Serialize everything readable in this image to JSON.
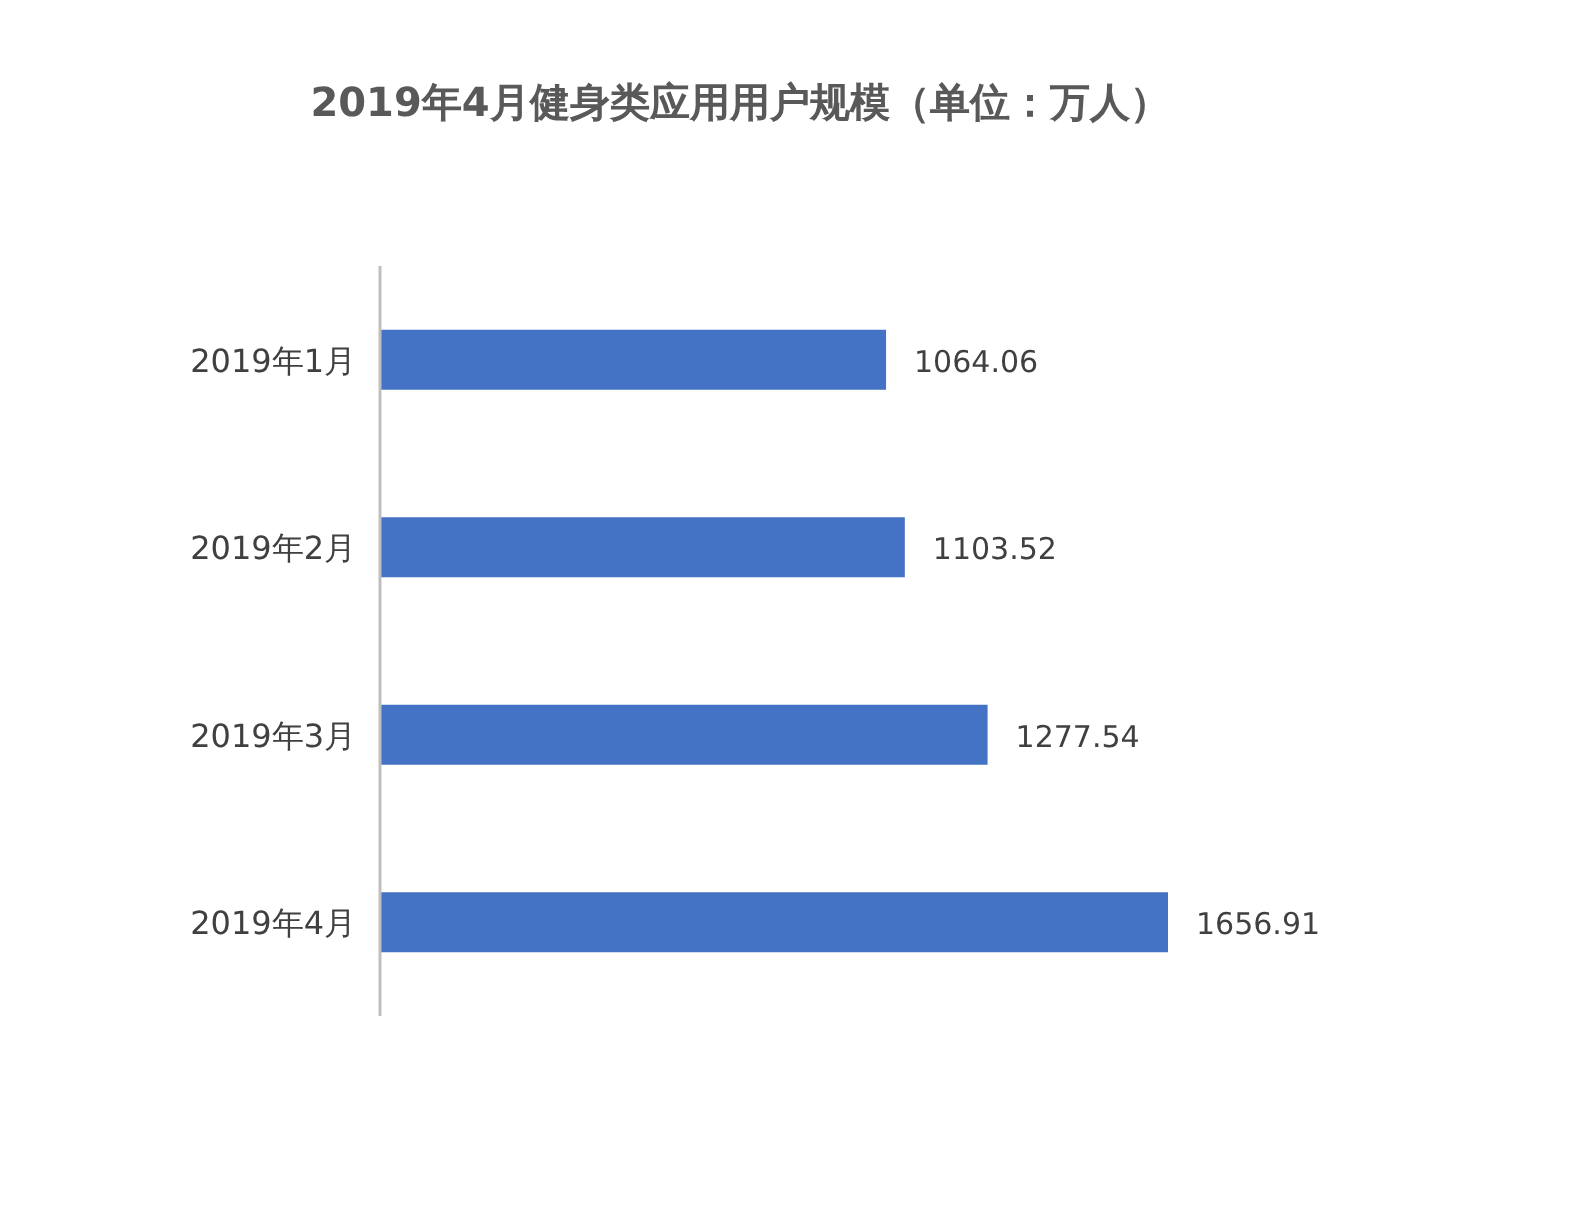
{
  "chart_data": {
    "type": "bar",
    "orientation": "horizontal",
    "title": "2019年4月健身类应用用户规模（单位：万人）",
    "categories": [
      "2019年1月",
      "2019年2月",
      "2019年3月",
      "2019年4月"
    ],
    "values": [
      1064.06,
      1103.52,
      1277.54,
      1656.91
    ],
    "color": "#4472c4",
    "data_labels": true
  }
}
